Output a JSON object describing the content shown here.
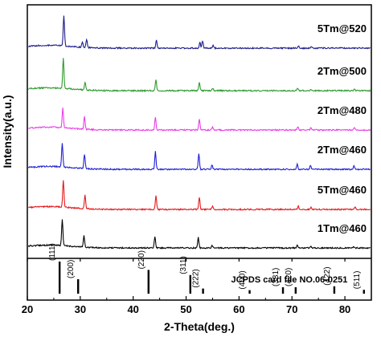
{
  "chart_data": {
    "type": "line",
    "xlabel": "2-Theta(deg.)",
    "ylabel": "Intensity(a.u.)",
    "xlim": [
      20,
      85
    ],
    "x_ticks": [
      20,
      30,
      40,
      50,
      60,
      70,
      80
    ],
    "grid": false,
    "legend": "inline-right",
    "series": [
      {
        "name": "1Tm@460",
        "color": "#000000",
        "peaks": [
          [
            26.6,
            32
          ],
          [
            30.7,
            14
          ],
          [
            44.1,
            14
          ],
          [
            52.3,
            13
          ],
          [
            54.9,
            3
          ],
          [
            71.0,
            3
          ],
          [
            73.5,
            2
          ],
          [
            81.7,
            2
          ]
        ]
      },
      {
        "name": "5Tm@460",
        "color": "#e41a1c",
        "peaks": [
          [
            26.8,
            34
          ],
          [
            30.9,
            17
          ],
          [
            44.3,
            17
          ],
          [
            52.5,
            15
          ],
          [
            55.0,
            4
          ],
          [
            71.2,
            4
          ],
          [
            73.6,
            3
          ],
          [
            81.9,
            3
          ]
        ]
      },
      {
        "name": "2Tm@460",
        "color": "#1f1fd6",
        "peaks": [
          [
            26.6,
            30
          ],
          [
            30.8,
            18
          ],
          [
            44.2,
            22
          ],
          [
            52.4,
            20
          ],
          [
            54.9,
            6
          ],
          [
            71.0,
            7
          ],
          [
            73.5,
            5
          ],
          [
            81.7,
            4
          ]
        ]
      },
      {
        "name": "2Tm@480",
        "color": "#e83ee8",
        "peaks": [
          [
            26.7,
            25
          ],
          [
            30.8,
            16
          ],
          [
            44.2,
            16
          ],
          [
            52.5,
            14
          ],
          [
            55.0,
            4
          ],
          [
            71.1,
            4
          ],
          [
            73.6,
            3
          ],
          [
            81.8,
            3
          ]
        ]
      },
      {
        "name": "2Tm@500",
        "color": "#2e9a2e",
        "peaks": [
          [
            26.8,
            38
          ],
          [
            30.9,
            10
          ],
          [
            44.3,
            14
          ],
          [
            52.5,
            10
          ],
          [
            55.0,
            3
          ],
          [
            71.1,
            3
          ],
          [
            73.6,
            2
          ],
          [
            81.8,
            2
          ]
        ]
      },
      {
        "name": "5Tm@520",
        "color": "#1c1c8a",
        "peaks": [
          [
            26.9,
            38
          ],
          [
            30.4,
            7
          ],
          [
            31.2,
            10
          ],
          [
            44.4,
            10
          ],
          [
            52.6,
            7
          ],
          [
            53.1,
            9
          ],
          [
            55.1,
            3
          ],
          [
            71.2,
            3
          ],
          [
            73.7,
            2
          ]
        ]
      }
    ],
    "reference": {
      "title": "JCPDS card file NO.06-0251",
      "lines": [
        {
          "label": "(111)",
          "x": 26.1,
          "intensity": 100
        },
        {
          "label": "(200)",
          "x": 29.6,
          "intensity": 45
        },
        {
          "label": "(220)",
          "x": 42.9,
          "intensity": 74
        },
        {
          "label": "(311)",
          "x": 50.8,
          "intensity": 58
        },
        {
          "label": "(222)",
          "x": 53.2,
          "intensity": 16
        },
        {
          "label": "(400)",
          "x": 62.0,
          "intensity": 11
        },
        {
          "label": "(331)",
          "x": 68.3,
          "intensity": 20
        },
        {
          "label": "(420)",
          "x": 70.7,
          "intensity": 20
        },
        {
          "label": "(422)",
          "x": 78.0,
          "intensity": 23
        },
        {
          "label": "(511)",
          "x": 83.6,
          "intensity": 12
        }
      ]
    }
  }
}
